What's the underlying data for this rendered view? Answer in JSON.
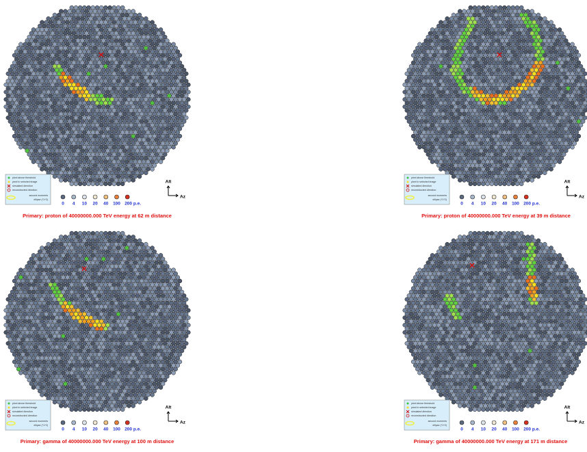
{
  "panels": [
    {
      "caption": "Primary: proton of 40000000.000 TeV energy at 62 m distance"
    },
    {
      "caption": "Primary: proton of 40000000.000 TeV energy at 39 m distance"
    },
    {
      "caption": "Primary: gamma of 40000000.000 TeV energy at 100 m distance"
    },
    {
      "caption": "Primary: gamma of 40000000.000 TeV energy at 171 m distance"
    }
  ],
  "legend": [
    "pixel above threshold",
    "pixel in selected image",
    "simulated direction",
    "reconstructed direction",
    "second moments",
    "ellipse (*1^2)"
  ],
  "scale": [
    "0",
    "4",
    "10",
    "20",
    "40",
    "100",
    "200 p.e."
  ],
  "axes": {
    "alt": "Alt",
    "az": "Az"
  }
}
